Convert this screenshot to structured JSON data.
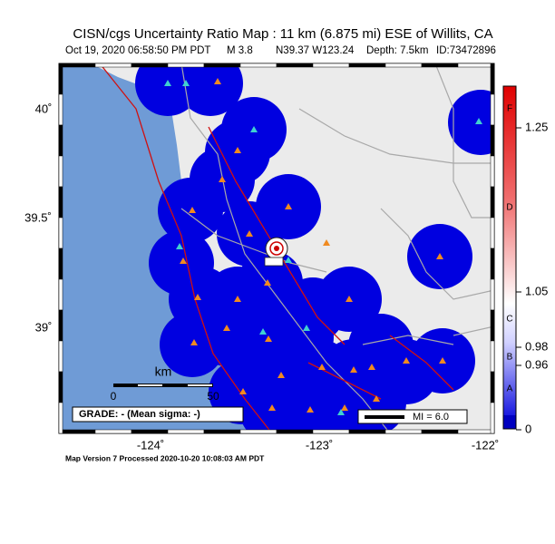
{
  "header": {
    "title": "CISN/cgs Uncertainty Ratio Map : 11 km (6.875 mi) ESE of Willits, CA",
    "subtitle": [
      "Oct 19, 2020 06:58:50 PM PDT",
      "M 3.8",
      "N39.37 W123.24",
      "Depth: 7.5km",
      "ID:73472896"
    ]
  },
  "map": {
    "lat_labels": [
      "40˚",
      "39.5˚",
      "39˚"
    ],
    "lon_labels": [
      "-124˚",
      "-123˚",
      "-122˚"
    ],
    "scale": {
      "unit": "km",
      "labels": [
        "0",
        "50"
      ]
    },
    "grade": "GRADE: - (Mean sigma: -)",
    "mi_legend": "MI = 6.0"
  },
  "colorbar": {
    "grades": [
      "F",
      "D",
      "C",
      "B",
      "A"
    ],
    "ticks": [
      1.25,
      1.05,
      0.98,
      0.96,
      0
    ]
  },
  "footer": "Map Version 7 Processed 2020-10-20 10:08:03 AM PDT"
}
